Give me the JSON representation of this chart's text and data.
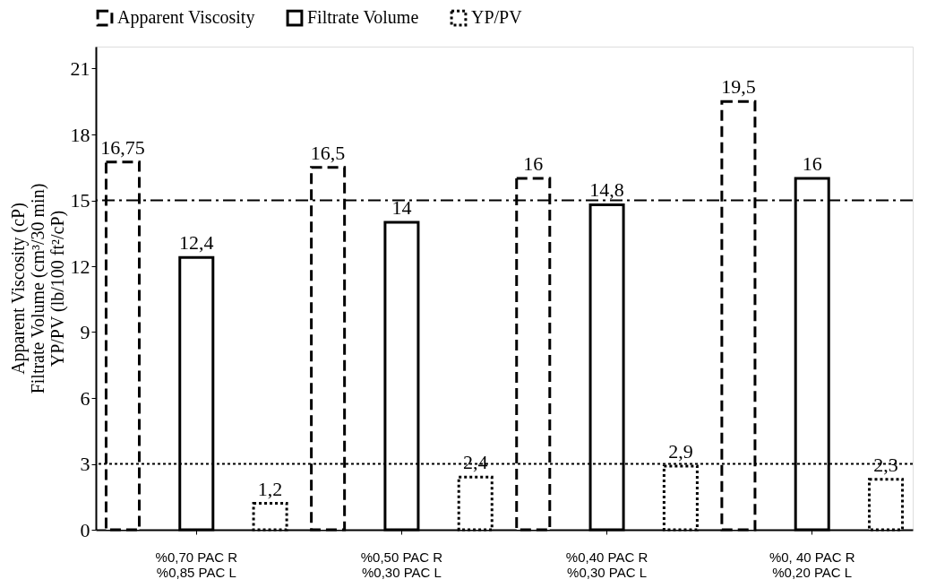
{
  "chart_data": {
    "type": "bar",
    "ylabel": "Apparent Viscosity (cP)\nFiltrate Volume (cm³/30 min)\nYP/PV (lb/100 ft²/cP)",
    "categories": [
      "%0,70 PAC R\n%0,85 PAC L",
      "%0,50 PAC R\n%0,30 PAC L",
      "%0,40 PAC R\n%0,30 PAC L",
      "%0, 40 PAC R\n%0,20 PAC L"
    ],
    "series": [
      {
        "name": "Apparent Viscosity",
        "color": "#000000",
        "line_style": "dashed",
        "values": [
          16.75,
          16.5,
          16,
          19.5
        ],
        "value_labels": [
          "16,75",
          "16,5",
          "16",
          "19,5"
        ]
      },
      {
        "name": "Filtrate Volume",
        "color": "#000000",
        "line_style": "solid",
        "values": [
          12.4,
          14,
          14.8,
          16
        ],
        "value_labels": [
          "12,4",
          "14",
          "14,8",
          "16"
        ]
      },
      {
        "name": "YP/PV",
        "color": "#000000",
        "line_style": "dotted",
        "values": [
          1.2,
          2.4,
          2.9,
          2.3
        ],
        "value_labels": [
          "1,2",
          "2,4",
          "2,9",
          "2,3"
        ]
      }
    ],
    "ylim": [
      0,
      22
    ],
    "yticks": [
      0,
      3,
      6,
      9,
      12,
      15,
      18,
      21
    ],
    "grid": false,
    "legend": "top",
    "ref_lines": [
      {
        "axis": "y",
        "value": 15,
        "line_style": "dashdot",
        "color": "#000000"
      },
      {
        "axis": "y",
        "value": 3,
        "line_style": "dotted",
        "color": "#000000"
      }
    ]
  }
}
